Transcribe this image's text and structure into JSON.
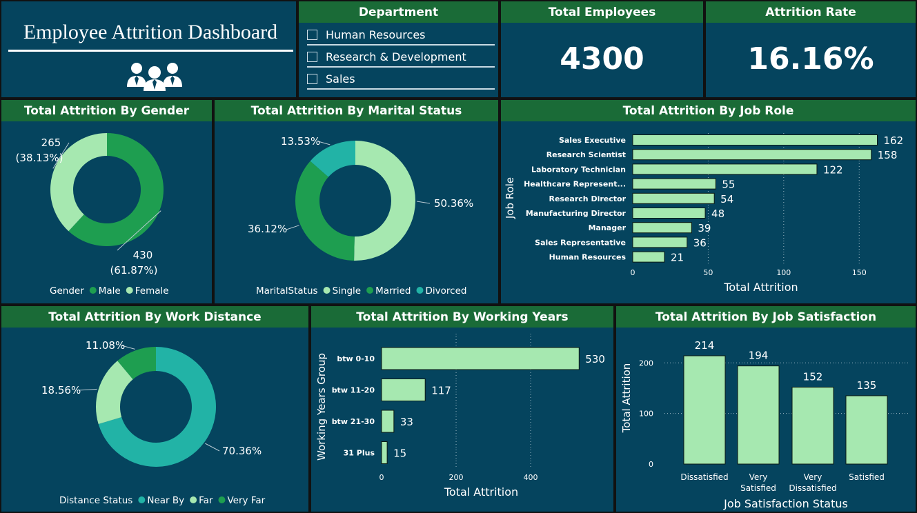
{
  "dashboard": {
    "title": "Employee Attrition Dashboard",
    "icon": "people-group-icon"
  },
  "department": {
    "header": "Department",
    "items": [
      {
        "label": "Human Resources"
      },
      {
        "label": "Research & Development"
      },
      {
        "label": "Sales"
      }
    ]
  },
  "kpis": {
    "employees": {
      "header": "Total Employees",
      "value": "4300"
    },
    "attrition_rate": {
      "header": "Attrition Rate",
      "value": "16.16%"
    }
  },
  "colors": {
    "panel_bg": "#05445e",
    "header_bg": "#1a6b37",
    "light_green": "#a6e8b0",
    "mid_green": "#1e9e50",
    "teal": "#22b3a6",
    "bar_fill": "#a6e8b0",
    "bar_stroke": "#0d1a12"
  },
  "chart_data": [
    {
      "id": "gender",
      "type": "pie",
      "title": "Total Attrition By Gender",
      "legend_title": "Gender",
      "slices": [
        {
          "name": "Male",
          "value": 430,
          "label": "430",
          "pct": "(61.87%)",
          "color": "#1e9e50"
        },
        {
          "name": "Female",
          "value": 265,
          "label": "265",
          "pct": "(38.13%)",
          "color": "#a6e8b0"
        }
      ]
    },
    {
      "id": "marital",
      "type": "pie",
      "title": "Total Attrition By Marital Status",
      "legend_title": "MaritalStatus",
      "slices": [
        {
          "name": "Single",
          "value": 50.36,
          "label": "50.36%",
          "color": "#a6e8b0"
        },
        {
          "name": "Married",
          "value": 36.12,
          "label": "36.12%",
          "color": "#1e9e50"
        },
        {
          "name": "Divorced",
          "value": 13.53,
          "label": "13.53%",
          "color": "#22b3a6"
        }
      ]
    },
    {
      "id": "jobrole",
      "type": "bar",
      "orientation": "horizontal",
      "title": "Total Attrition By Job Role",
      "xlabel": "Total Attrition",
      "ylabel": "Job Role",
      "xlim": [
        0,
        170
      ],
      "ticks": [
        0,
        50,
        100,
        150
      ],
      "categories": [
        "Sales Executive",
        "Research Scientist",
        "Laboratory Technician",
        "Healthcare Represent...",
        "Research Director",
        "Manufacturing Director",
        "Manager",
        "Sales Representative",
        "Human Resources"
      ],
      "values": [
        162,
        158,
        122,
        55,
        54,
        48,
        39,
        36,
        21
      ]
    },
    {
      "id": "distance",
      "type": "pie",
      "title": "Total Attrition By Work Distance",
      "legend_title": "Distance Status",
      "slices": [
        {
          "name": "Near By",
          "value": 70.36,
          "label": "70.36%",
          "color": "#22b3a6"
        },
        {
          "name": "Far",
          "value": 18.56,
          "label": "18.56%",
          "color": "#a6e8b0"
        },
        {
          "name": "Very Far",
          "value": 11.08,
          "label": "11.08%",
          "color": "#1e9e50"
        }
      ]
    },
    {
      "id": "years",
      "type": "bar",
      "orientation": "horizontal",
      "title": "Total Attrition By Working Years",
      "xlabel": "Total Attrition",
      "ylabel": "Working Years Group",
      "xlim": [
        0,
        535
      ],
      "ticks": [
        0,
        200,
        400
      ],
      "categories": [
        "btw 0-10",
        "btw 11-20",
        "btw 21-30",
        "31 Plus"
      ],
      "values": [
        530,
        117,
        33,
        15
      ]
    },
    {
      "id": "satisfaction",
      "type": "bar",
      "orientation": "vertical",
      "title": "Total Attrition By Job Satisfaction",
      "xlabel": "Job Satisfaction Status",
      "ylabel": "Total Attrition",
      "ylim": [
        0,
        214
      ],
      "ticks": [
        0,
        100,
        200
      ],
      "categories": [
        [
          "Dissatisfied"
        ],
        [
          "Very",
          "Satisfied"
        ],
        [
          "Very",
          "Dissatisfied"
        ],
        [
          "Satisfied"
        ]
      ],
      "values": [
        214,
        194,
        152,
        135
      ]
    }
  ]
}
